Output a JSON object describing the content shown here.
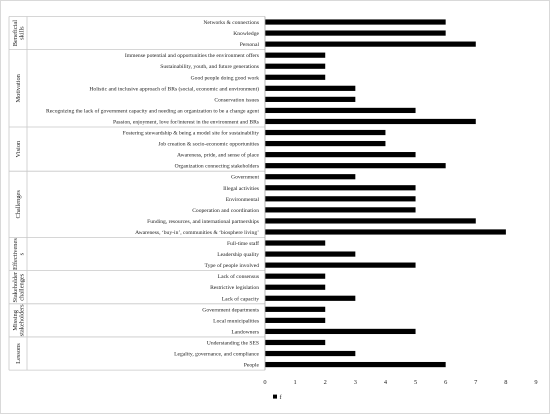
{
  "chart_data": {
    "type": "bar",
    "orientation": "horizontal",
    "xlim": [
      0,
      9
    ],
    "x_ticks": [
      "0",
      "1",
      "2",
      "3",
      "4",
      "5",
      "6",
      "7",
      "8",
      "9"
    ],
    "grid": false,
    "legend": {
      "position": "bottom-left",
      "entries": [
        "f"
      ]
    },
    "series": [
      {
        "name": "f",
        "color": "#000000"
      }
    ],
    "groups": [
      {
        "label": "Beneficial skills",
        "categories": [
          "Networks & connections",
          "Knowledge",
          "Personal"
        ],
        "values": [
          6,
          6,
          7
        ]
      },
      {
        "label": "Motivation",
        "categories": [
          "Immense potential and opportunities the environment offers",
          "Sustainability, youth, and future generations",
          "Good people doing good work",
          "Holistic and inclusive approach of BRs (social, economic and environment)",
          "Conservation issues",
          "Recognizing the lack of government capacity and needing an organization to be a change agent",
          "Passion, enjoyment, love for/interest in the environment and BRs"
        ],
        "values": [
          2,
          2,
          2,
          3,
          3,
          5,
          7
        ]
      },
      {
        "label": "Vision",
        "categories": [
          "Fostering stewardship & being a model site for sustainability",
          "Job creation & socio-economic opportunities",
          "Awareness, pride, and sense of place",
          "Organization connecting stakeholders"
        ],
        "values": [
          4,
          4,
          5,
          6
        ]
      },
      {
        "label": "Challenges",
        "categories": [
          "Government",
          "Illegal activities",
          "Environmental",
          "Cooperation and coordination",
          "Funding, resources, and international partnerships",
          "Awareness, ‘buy-in’, communities & ‘biosphere living’"
        ],
        "values": [
          3,
          5,
          5,
          5,
          7,
          8
        ]
      },
      {
        "label": "Effectivenes s",
        "categories": [
          "Full-time staff",
          "Leadership quality",
          "Type of people involved"
        ],
        "values": [
          2,
          3,
          5
        ]
      },
      {
        "label": "Stakeholder challenges",
        "categories": [
          "Lack of consensus",
          "Restrictive legislation",
          "Lack of capacity"
        ],
        "values": [
          2,
          2,
          3
        ]
      },
      {
        "label": "Missing stakeholders",
        "categories": [
          "Government departments",
          "Local municipalities",
          "Landowners"
        ],
        "values": [
          2,
          2,
          5
        ]
      },
      {
        "label": "Lessons",
        "categories": [
          "Understanding the SES",
          "Legality, governance, and compliance",
          "People"
        ],
        "values": [
          2,
          3,
          6
        ]
      }
    ]
  }
}
